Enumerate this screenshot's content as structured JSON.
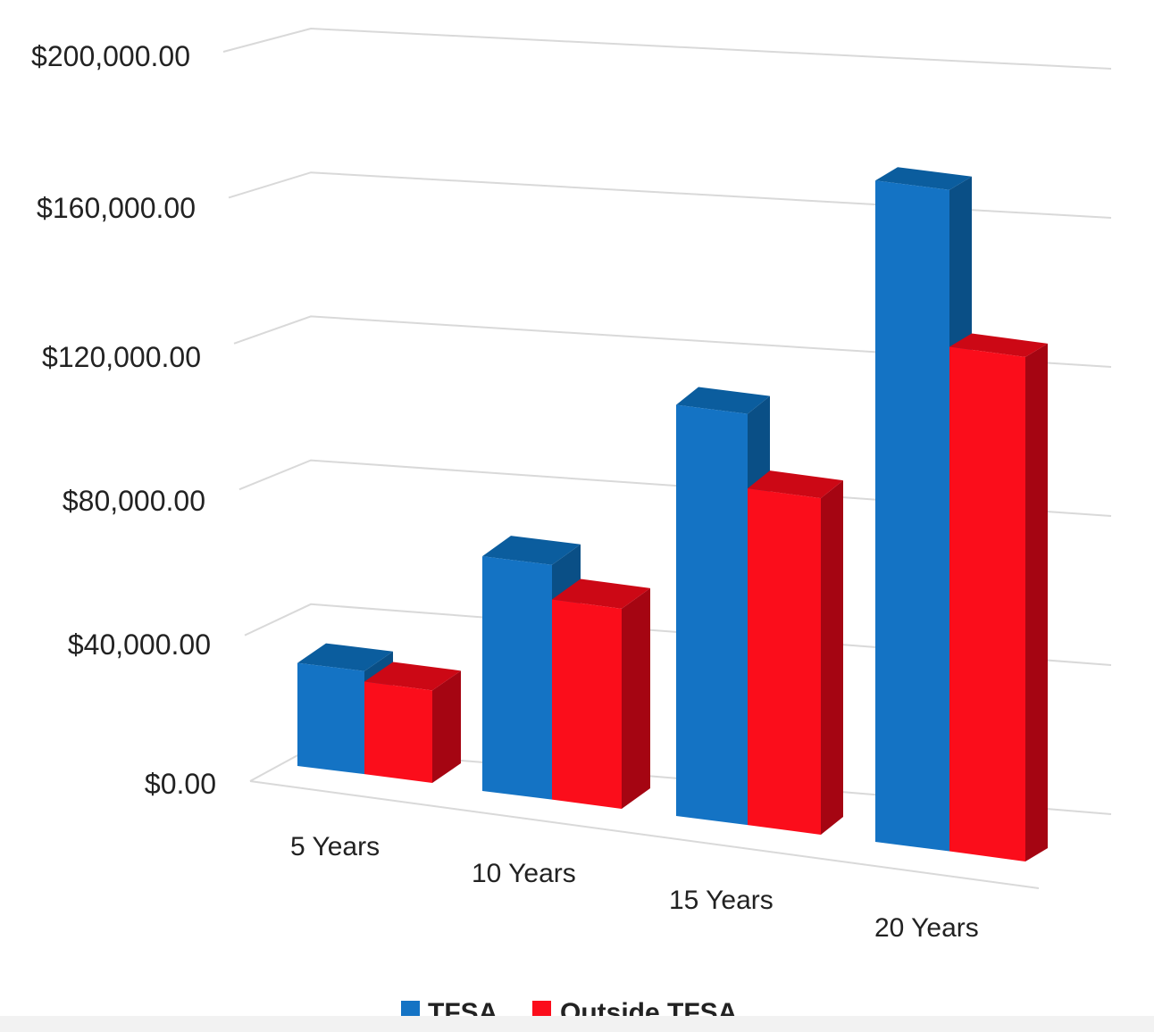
{
  "chart_data": {
    "type": "bar",
    "categories": [
      "5 Years",
      "10 Years",
      "15 Years",
      "20 Years"
    ],
    "series": [
      {
        "name": "TFSA",
        "values": [
          29500,
          64500,
          113000,
          185500
        ],
        "color": "#1473c4",
        "top_color": "#0b5d9e",
        "side_color": "#0a4f86"
      },
      {
        "name": "Outside TFSA",
        "values": [
          26500,
          55000,
          92500,
          141500
        ],
        "color": "#fb0d1b",
        "top_color": "#cc0815",
        "side_color": "#a50512"
      }
    ],
    "y_ticks": [
      "$0.00",
      "$40,000.00",
      "$80,000.00",
      "$120,000.00",
      "$160,000.00",
      "$200,000.00"
    ],
    "ylim": [
      0,
      200000
    ],
    "grid": true,
    "legend": "bottom",
    "style": "3d-clustered-column"
  }
}
